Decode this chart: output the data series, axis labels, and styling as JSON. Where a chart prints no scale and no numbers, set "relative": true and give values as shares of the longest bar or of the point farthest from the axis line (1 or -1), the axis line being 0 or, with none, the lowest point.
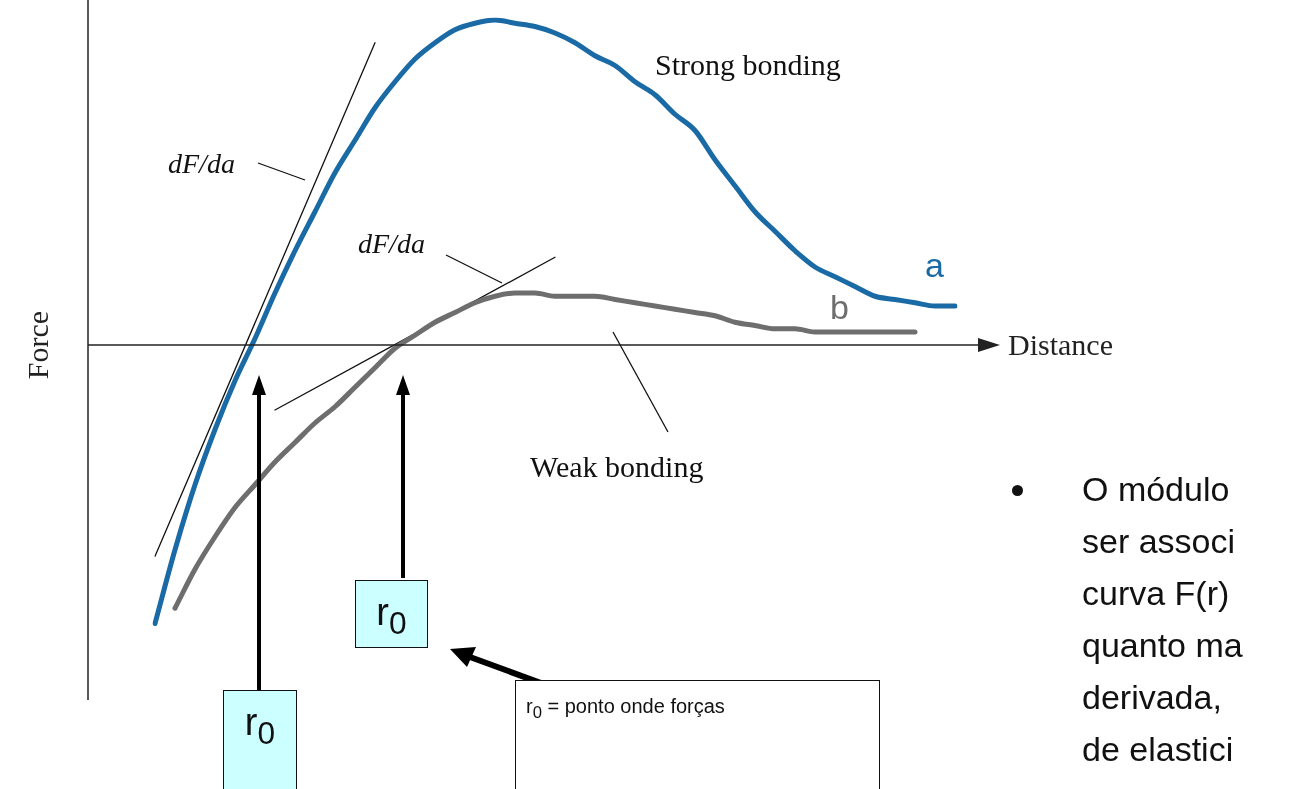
{
  "chart_data": {
    "type": "line",
    "relative": true,
    "xlabel": "Distance",
    "ylabel": "Force",
    "categories": [
      null,
      null,
      null,
      null,
      null,
      null,
      null,
      null,
      null,
      null,
      null,
      null,
      null,
      null,
      null,
      null,
      null,
      null,
      null,
      null,
      null,
      null,
      null,
      null,
      null,
      null,
      null,
      null,
      null,
      null,
      null,
      null,
      null,
      null,
      null,
      null,
      null,
      null,
      null,
      null,
      null
    ],
    "series": [
      {
        "name": "a",
        "color": "#1a6aa6",
        "values": [
          -0.857,
          -0.63,
          -0.43,
          -0.26,
          -0.11,
          0.02,
          0.16,
          0.29,
          0.41,
          0.53,
          0.63,
          0.73,
          0.81,
          0.88,
          0.93,
          0.97,
          0.99,
          1.0,
          0.99,
          0.98,
          0.96,
          0.93,
          0.89,
          0.86,
          0.81,
          0.77,
          0.71,
          0.66,
          0.57,
          0.49,
          0.41,
          0.35,
          0.29,
          0.24,
          0.21,
          0.18,
          0.15,
          0.14,
          0.13,
          0.12,
          0.12
        ]
      },
      {
        "name": "b",
        "color": "#6e6e6e",
        "values": [
          null,
          -0.81,
          -0.69,
          -0.59,
          -0.5,
          -0.43,
          -0.36,
          -0.3,
          -0.24,
          -0.19,
          -0.13,
          -0.07,
          -0.01,
          0.03,
          0.07,
          0.1,
          0.13,
          0.15,
          0.16,
          0.16,
          0.15,
          0.15,
          0.15,
          0.14,
          0.13,
          0.12,
          0.11,
          0.1,
          0.09,
          0.07,
          0.06,
          0.05,
          0.05,
          0.04,
          0.04,
          0.04,
          0.04,
          0.04,
          0.04,
          null,
          null
        ]
      },
      {
        "color": "#111111",
        "values": [
          -0.65,
          null,
          null,
          null,
          null,
          null,
          null,
          null,
          null,
          null,
          null,
          0.93,
          null,
          null,
          null,
          null,
          null,
          null,
          null,
          null,
          null,
          null,
          null,
          null,
          null,
          null,
          null,
          null,
          null,
          null,
          null,
          null,
          null,
          null,
          null,
          null,
          null,
          null,
          null,
          null,
          null
        ]
      },
      {
        "color": "#111111",
        "values": [
          null,
          null,
          null,
          null,
          null,
          null,
          -0.2,
          null,
          null,
          null,
          null,
          null,
          null,
          null,
          null,
          null,
          null,
          null,
          null,
          null,
          0.27,
          null,
          null,
          null,
          null,
          null,
          null,
          null,
          null,
          null,
          null,
          null,
          null,
          null,
          null,
          null,
          null,
          null,
          null,
          null,
          null
        ]
      }
    ],
    "marker": "none",
    "legend": false,
    "grid": false,
    "annotations": [
      "Strong bonding",
      "Weak bonding",
      "dF/da",
      "dF/da",
      "r$_{0}$",
      "r$_{0}$",
      "r$_{0}$ = ponto onde forças",
      "O módulo",
      "ser associ",
      "curva F(r)",
      "quanto ma",
      "derivada,",
      "de elastici"
    ]
  }
}
